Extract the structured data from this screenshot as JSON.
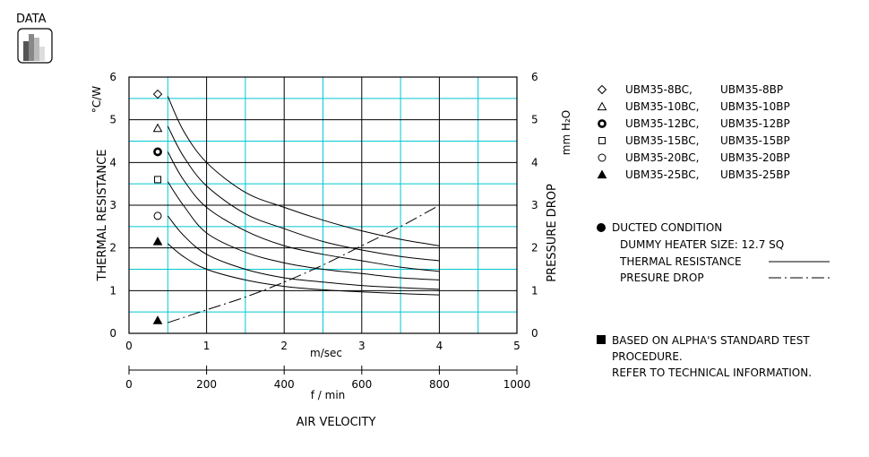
{
  "header": {
    "label": "DATA",
    "icon": "bar-chart-icon"
  },
  "colors": {
    "grid_major": "#000000",
    "grid_minor": "#00c8d2",
    "curve": "#000000"
  },
  "chart_data": {
    "type": "line",
    "x_axis": {
      "label": "m/sec",
      "ticks": [
        0,
        1,
        2,
        3,
        4,
        5
      ],
      "range": [
        0,
        5
      ]
    },
    "x_axis_secondary": {
      "label": "f / min",
      "ticks": [
        0,
        200,
        400,
        600,
        800,
        1000
      ],
      "range": [
        0,
        1000
      ]
    },
    "x_caption": "AIR VELOCITY",
    "y_axis_left": {
      "label": "THERMAL  RESISTANCE",
      "unit": "°C/W",
      "ticks": [
        0,
        1,
        2,
        3,
        4,
        5,
        6
      ],
      "range": [
        0,
        6
      ]
    },
    "y_axis_right": {
      "label": "PRESSURE  DROP",
      "unit": "mm H₂O",
      "ticks": [
        0,
        1,
        2,
        3,
        4,
        5,
        6
      ],
      "range": [
        0,
        6
      ]
    },
    "grid": true,
    "thermal_series": [
      {
        "name": "UBM35-8BC",
        "marker": "diamond",
        "marker_value": 5.6,
        "x": [
          0.5,
          0.7,
          1.0,
          1.5,
          2.0,
          2.5,
          3.0,
          3.5,
          4.0
        ],
        "y": [
          5.55,
          4.75,
          4.0,
          3.3,
          2.95,
          2.65,
          2.4,
          2.2,
          2.05
        ]
      },
      {
        "name": "UBM35-10BC",
        "marker": "triangle-open",
        "marker_value": 4.8,
        "x": [
          0.5,
          0.7,
          1.0,
          1.5,
          2.0,
          2.5,
          3.0,
          3.5,
          4.0
        ],
        "y": [
          4.85,
          4.15,
          3.45,
          2.8,
          2.45,
          2.15,
          1.95,
          1.8,
          1.7
        ]
      },
      {
        "name": "UBM35-12BC",
        "marker": "ring-bold",
        "marker_value": 4.25,
        "x": [
          0.5,
          0.7,
          1.0,
          1.5,
          2.0,
          2.5,
          3.0,
          3.5,
          4.0
        ],
        "y": [
          4.25,
          3.6,
          2.95,
          2.4,
          2.05,
          1.85,
          1.7,
          1.55,
          1.45
        ]
      },
      {
        "name": "UBM35-15BC",
        "marker": "square",
        "marker_value": 3.6,
        "x": [
          0.5,
          0.7,
          1.0,
          1.5,
          2.0,
          2.5,
          3.0,
          3.5,
          4.0
        ],
        "y": [
          3.55,
          3.0,
          2.35,
          1.9,
          1.65,
          1.5,
          1.4,
          1.3,
          1.25
        ]
      },
      {
        "name": "UBM35-20BC",
        "marker": "circle",
        "marker_value": 2.75,
        "x": [
          0.5,
          0.7,
          1.0,
          1.5,
          2.0,
          2.5,
          3.0,
          3.5,
          4.0
        ],
        "y": [
          2.75,
          2.3,
          1.85,
          1.5,
          1.3,
          1.2,
          1.12,
          1.07,
          1.03
        ]
      },
      {
        "name": "UBM35-25BC",
        "marker": "triangle-filled",
        "marker_value": 2.15,
        "x": [
          0.5,
          0.7,
          1.0,
          1.5,
          2.0,
          2.5,
          3.0,
          3.5,
          4.0
        ],
        "y": [
          2.1,
          1.8,
          1.5,
          1.25,
          1.1,
          1.02,
          0.97,
          0.93,
          0.9
        ]
      }
    ],
    "pressure_series": {
      "name": "PRESURE DROP",
      "marker": "triangle-filled",
      "marker_value": 0.3,
      "x": [
        0.5,
        1.0,
        1.5,
        2.0,
        2.5,
        3.0,
        3.5,
        4.0
      ],
      "y": [
        0.25,
        0.55,
        0.85,
        1.2,
        1.6,
        2.05,
        2.5,
        3.0
      ]
    }
  },
  "legend": {
    "models": [
      {
        "marker": "diamond",
        "bc": "UBM35-8BC,",
        "bp": "UBM35-8BP"
      },
      {
        "marker": "triangle-open",
        "bc": "UBM35-10BC,",
        "bp": "UBM35-10BP"
      },
      {
        "marker": "ring-bold",
        "bc": "UBM35-12BC,",
        "bp": "UBM35-12BP"
      },
      {
        "marker": "square",
        "bc": "UBM35-15BC,",
        "bp": "UBM35-15BP"
      },
      {
        "marker": "circle",
        "bc": "UBM35-20BC,",
        "bp": "UBM35-20BP"
      },
      {
        "marker": "triangle-filled",
        "bc": "UBM35-25BC,",
        "bp": "UBM35-25BP"
      }
    ],
    "condition_title": "DUCTED CONDITION",
    "heater_size": "DUMMY HEATER SIZE: 12.7 SQ",
    "thermal_label": "THERMAL RESISTANCE",
    "pressure_label": "PRESURE DROP",
    "note_line1": "BASED ON ALPHA'S STANDARD TEST",
    "note_line2": "PROCEDURE.",
    "note_line3": "REFER TO TECHNICAL INFORMATION."
  }
}
